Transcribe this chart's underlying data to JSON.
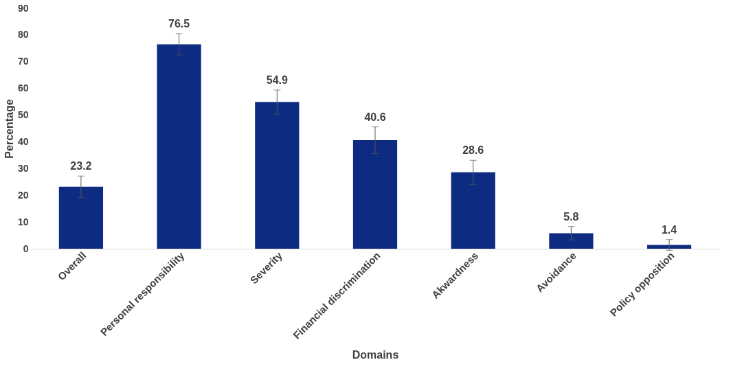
{
  "chart_data": {
    "type": "bar",
    "xlabel": "Domains",
    "ylabel": "Percentage",
    "categories": [
      "Overall",
      "Personal responsibility",
      "Severity",
      "Financial discrimination",
      "Akwardness",
      "Avoidance",
      "Policy opposition"
    ],
    "values": [
      23.2,
      76.5,
      54.9,
      40.6,
      28.6,
      5.8,
      1.4
    ],
    "errors": [
      4,
      4,
      4.5,
      5,
      4.5,
      2.5,
      2
    ],
    "color": "#0d2b80",
    "ylim": [
      0,
      90
    ],
    "yticks": [
      0,
      10,
      20,
      30,
      40,
      50,
      60,
      70,
      80,
      90
    ],
    "data_labels": true,
    "grid": false
  }
}
